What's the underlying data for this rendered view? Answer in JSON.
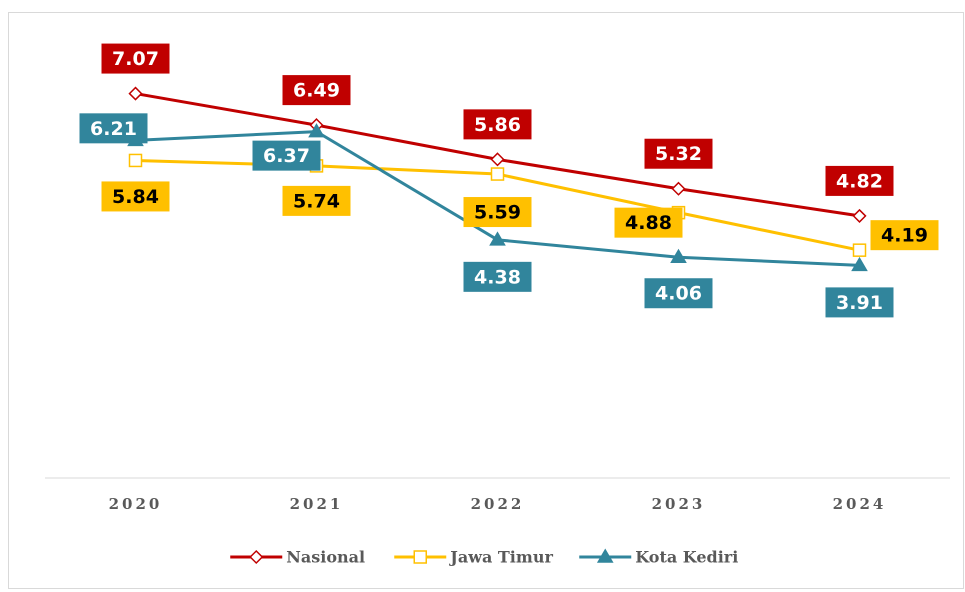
{
  "chart_data": {
    "type": "line",
    "categories": [
      "2020",
      "2021",
      "2022",
      "2023",
      "2024"
    ],
    "series": [
      {
        "name": "Nasional",
        "color": "#c00000",
        "marker": "diamond",
        "values": [
          7.07,
          6.49,
          5.86,
          5.32,
          4.82
        ]
      },
      {
        "name": "Jawa Timur",
        "color": "#ffc000",
        "marker": "square",
        "values": [
          5.84,
          5.74,
          5.59,
          4.88,
          4.19
        ]
      },
      {
        "name": "Kota Kediri",
        "color": "#31859c",
        "marker": "triangle",
        "values": [
          6.21,
          6.37,
          4.38,
          4.06,
          3.91
        ]
      }
    ],
    "ylim": [
      0,
      8
    ],
    "grid": false,
    "legend": "bottom"
  }
}
